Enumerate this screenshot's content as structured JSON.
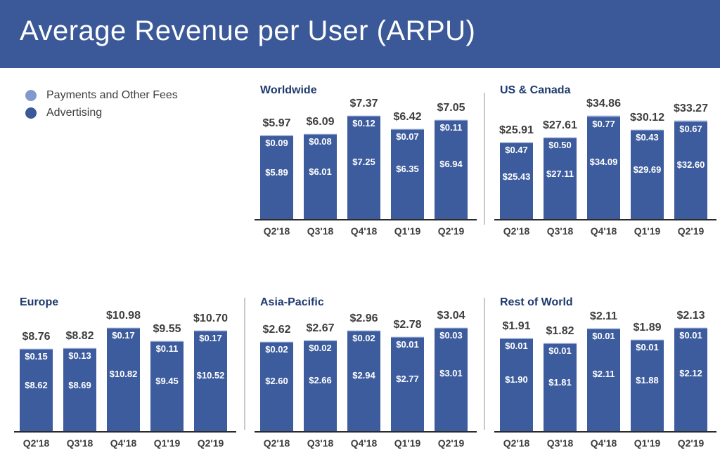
{
  "header": {
    "title": "Average Revenue per User (ARPU)"
  },
  "colors": {
    "header_bg": "#3b5998",
    "advertising_bar": "#3d5c9d",
    "payments_bar": "#8398cb",
    "chart_title_navy": "#1f3a6e",
    "text_gray": "#3e3e3e",
    "axis_baseline": "#2b2b2b",
    "panel_divider": "#c9c9c9"
  },
  "legend": {
    "items": [
      {
        "key": "payments",
        "label": "Payments and Other Fees",
        "color": "#8398cb"
      },
      {
        "key": "advertising",
        "label": "Advertising",
        "color": "#3b5998"
      }
    ]
  },
  "chart_data": [
    {
      "type": "bar",
      "stacked": true,
      "grid": false,
      "unit": "USD",
      "title": "Worldwide",
      "layout_pos": "row1 col2",
      "categories": [
        "Q2'18",
        "Q3'18",
        "Q4'18",
        "Q1'19",
        "Q2'19"
      ],
      "series": [
        {
          "name": "Payments and Other Fees",
          "values": [
            0.09,
            0.08,
            0.12,
            0.07,
            0.11
          ]
        },
        {
          "name": "Advertising",
          "values": [
            5.89,
            6.01,
            7.25,
            6.35,
            6.94
          ]
        }
      ],
      "totals": [
        5.97,
        6.09,
        7.37,
        6.42,
        7.05
      ],
      "ylim": [
        0,
        7.37
      ]
    },
    {
      "type": "bar",
      "stacked": true,
      "grid": false,
      "unit": "USD",
      "title": "US & Canada",
      "layout_pos": "row1 col3",
      "categories": [
        "Q2'18",
        "Q3'18",
        "Q4'18",
        "Q1'19",
        "Q2'19"
      ],
      "series": [
        {
          "name": "Payments and Other Fees",
          "values": [
            0.47,
            0.5,
            0.77,
            0.43,
            0.67
          ]
        },
        {
          "name": "Advertising",
          "values": [
            25.43,
            27.11,
            34.09,
            29.69,
            32.6
          ]
        }
      ],
      "totals": [
        25.91,
        27.61,
        34.86,
        30.12,
        33.27
      ],
      "ylim": [
        0,
        34.86
      ]
    },
    {
      "type": "bar",
      "stacked": true,
      "grid": false,
      "unit": "USD",
      "title": "Europe",
      "layout_pos": "row2 col1",
      "categories": [
        "Q2'18",
        "Q3'18",
        "Q4'18",
        "Q1'19",
        "Q2'19"
      ],
      "series": [
        {
          "name": "Payments and Other Fees",
          "values": [
            0.15,
            0.13,
            0.17,
            0.11,
            0.17
          ]
        },
        {
          "name": "Advertising",
          "values": [
            8.62,
            8.69,
            10.82,
            9.45,
            10.52
          ]
        }
      ],
      "totals": [
        8.76,
        8.82,
        10.98,
        9.55,
        10.7
      ],
      "ylim": [
        0,
        10.98
      ]
    },
    {
      "type": "bar",
      "stacked": true,
      "grid": false,
      "unit": "USD",
      "title": "Asia-Pacific",
      "layout_pos": "row2 col2",
      "categories": [
        "Q2'18",
        "Q3'18",
        "Q4'18",
        "Q1'19",
        "Q2'19"
      ],
      "series": [
        {
          "name": "Payments and Other Fees",
          "values": [
            0.02,
            0.02,
            0.02,
            0.01,
            0.03
          ]
        },
        {
          "name": "Advertising",
          "values": [
            2.6,
            2.66,
            2.94,
            2.77,
            3.01
          ]
        }
      ],
      "totals": [
        2.62,
        2.67,
        2.96,
        2.78,
        3.04
      ],
      "ylim": [
        0,
        3.04
      ]
    },
    {
      "type": "bar",
      "stacked": true,
      "grid": false,
      "unit": "USD",
      "title": "Rest of World",
      "layout_pos": "row2 col3",
      "categories": [
        "Q2'18",
        "Q3'18",
        "Q4'18",
        "Q1'19",
        "Q2'19"
      ],
      "series": [
        {
          "name": "Payments and Other Fees",
          "values": [
            0.01,
            0.01,
            0.01,
            0.01,
            0.01
          ]
        },
        {
          "name": "Advertising",
          "values": [
            1.9,
            1.81,
            2.11,
            1.88,
            2.12
          ]
        }
      ],
      "totals": [
        1.91,
        1.82,
        2.11,
        1.89,
        2.13
      ],
      "ylim": [
        0,
        2.13
      ]
    }
  ]
}
